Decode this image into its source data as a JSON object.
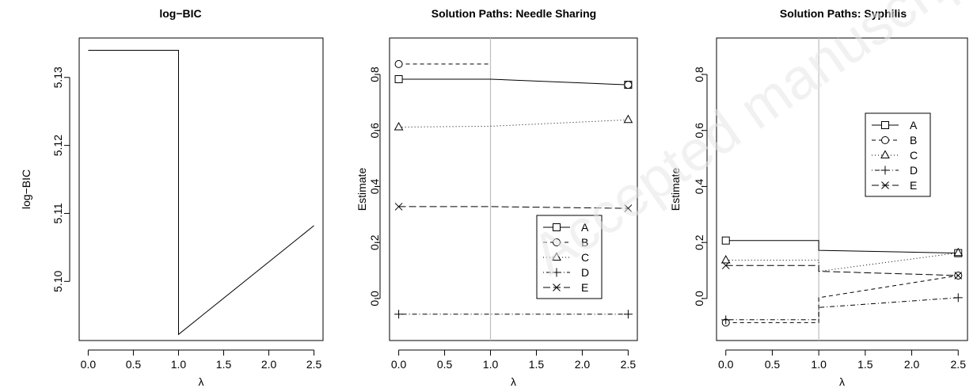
{
  "watermark": "Accepted manuscript",
  "chart_data": [
    {
      "type": "line",
      "title": "log−BIC",
      "xlabel": "λ",
      "ylabel": "log−BIC",
      "xlim": [
        -0.1,
        2.6
      ],
      "ylim": [
        5.0913,
        5.1358
      ],
      "xticks": [
        0.0,
        0.5,
        1.0,
        1.5,
        2.0,
        2.5
      ],
      "xtick_labels": [
        "0.0",
        "0.5",
        "1.0",
        "1.5",
        "2.0",
        "2.5"
      ],
      "yticks": [
        5.1,
        5.11,
        5.12,
        5.13
      ],
      "ytick_labels": [
        "5.10",
        "5.11",
        "5.12",
        "5.13"
      ],
      "grid": false,
      "series": [
        {
          "style": "solid",
          "x": [
            0.0,
            1.0,
            1.0,
            2.5
          ],
          "y": [
            5.134,
            5.134,
            5.0922,
            5.1082
          ]
        }
      ]
    },
    {
      "type": "line",
      "title": "Solution Paths: Needle Sharing",
      "xlabel": "λ",
      "ylabel": "Estimate",
      "xlim": [
        -0.1,
        2.6
      ],
      "ylim": [
        -0.15,
        0.93
      ],
      "xticks": [
        0.0,
        0.5,
        1.0,
        1.5,
        2.0,
        2.5
      ],
      "xtick_labels": [
        "0.0",
        "0.5",
        "1.0",
        "1.5",
        "2.0",
        "2.5"
      ],
      "yticks": [
        0.0,
        0.2,
        0.4,
        0.6,
        0.8
      ],
      "ytick_labels": [
        "0.0",
        "0.2",
        "0.4",
        "0.6",
        "0.8"
      ],
      "vline": 1.0,
      "grid": false,
      "legend_position": "bottom-right",
      "series": [
        {
          "name": "A",
          "marker": "square",
          "style": "solid",
          "x": [
            0.0,
            1.0,
            2.5
          ],
          "y": [
            0.783,
            0.783,
            0.763
          ]
        },
        {
          "name": "B",
          "marker": "circle",
          "style": "dashed",
          "x": [
            0.0,
            1.0,
            1.0,
            2.5
          ],
          "y": [
            0.837,
            0.837,
            null,
            0.763
          ]
        },
        {
          "name": "C",
          "marker": "triangle",
          "style": "dotted",
          "x": [
            0.0,
            1.0,
            2.5
          ],
          "y": [
            0.612,
            0.615,
            0.638
          ]
        },
        {
          "name": "D",
          "marker": "plus",
          "style": "dotdash",
          "x": [
            0.0,
            1.0,
            2.5
          ],
          "y": [
            -0.056,
            -0.056,
            -0.056
          ]
        },
        {
          "name": "E",
          "marker": "cross",
          "style": "longdash",
          "x": [
            0.0,
            1.0,
            2.5
          ],
          "y": [
            0.328,
            0.328,
            0.322
          ]
        }
      ]
    },
    {
      "type": "line",
      "title": "Solution Paths: Syphilis",
      "xlabel": "λ",
      "ylabel": "Estimate",
      "xlim": [
        -0.1,
        2.6
      ],
      "ylim": [
        -0.15,
        0.93
      ],
      "xticks": [
        0.0,
        0.5,
        1.0,
        1.5,
        2.0,
        2.5
      ],
      "xtick_labels": [
        "0.0",
        "0.5",
        "1.0",
        "1.5",
        "2.0",
        "2.5"
      ],
      "yticks": [
        0.0,
        0.2,
        0.4,
        0.6,
        0.8
      ],
      "ytick_labels": [
        "0.0",
        "0.2",
        "0.4",
        "0.6",
        "0.8"
      ],
      "vline": 1.0,
      "grid": false,
      "legend_position": "top-right",
      "series": [
        {
          "name": "A",
          "marker": "square",
          "style": "solid",
          "x": [
            0.0,
            1.0,
            1.0,
            2.5
          ],
          "y": [
            0.207,
            0.207,
            0.172,
            0.162
          ]
        },
        {
          "name": "B",
          "marker": "circle",
          "style": "dashed",
          "x": [
            0.0,
            1.0,
            1.0,
            2.5
          ],
          "y": [
            -0.086,
            -0.086,
            0.003,
            0.082
          ]
        },
        {
          "name": "C",
          "marker": "triangle",
          "style": "dotted",
          "x": [
            0.0,
            1.0,
            1.0,
            2.5
          ],
          "y": [
            0.137,
            0.137,
            0.097,
            0.163
          ]
        },
        {
          "name": "D",
          "marker": "plus",
          "style": "dotdash",
          "x": [
            0.0,
            1.0,
            1.0,
            2.5
          ],
          "y": [
            -0.076,
            -0.076,
            -0.032,
            0.003
          ]
        },
        {
          "name": "E",
          "marker": "cross",
          "style": "longdash",
          "x": [
            0.0,
            1.0,
            1.0,
            2.5
          ],
          "y": [
            0.118,
            0.118,
            0.097,
            0.082
          ]
        }
      ]
    }
  ]
}
